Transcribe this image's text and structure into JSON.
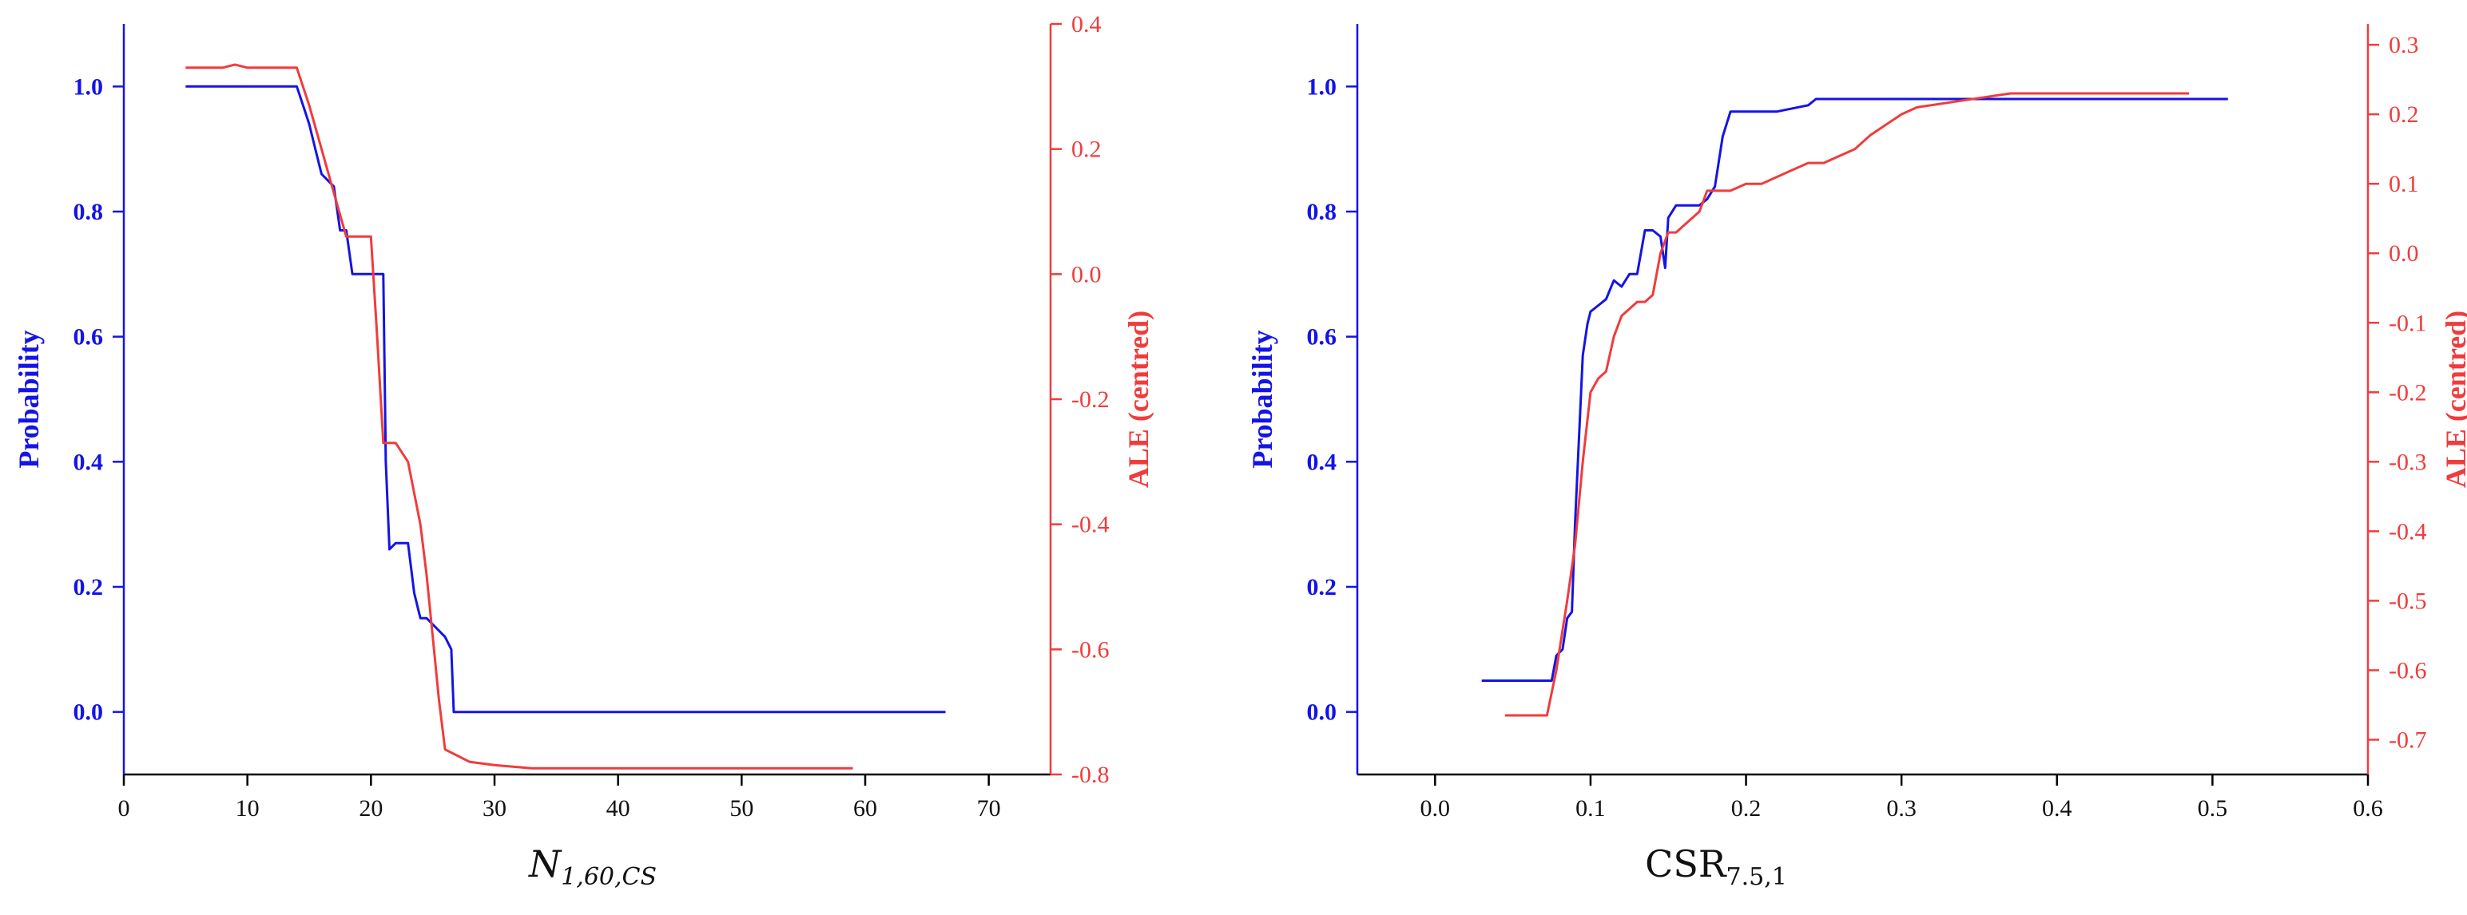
{
  "chart_data": [
    {
      "type": "line",
      "xlabel": {
        "main": "N",
        "sub": "1,60,CS"
      },
      "ylabel": "Probability",
      "y2label": "ALE (centred)",
      "xlim": [
        0,
        75
      ],
      "ylim": [
        -0.1,
        1.1
      ],
      "y2lim": [
        -0.8,
        0.4
      ],
      "xticks": [
        "0",
        "10",
        "20",
        "30",
        "40",
        "50",
        "60",
        "70"
      ],
      "yticks": [
        "0.0",
        "0.2",
        "0.4",
        "0.6",
        "0.8",
        "1.0"
      ],
      "y2ticks": [
        "-0.8",
        "-0.6",
        "-0.4",
        "-0.2",
        "0.0",
        "0.2",
        "0.4"
      ],
      "colors": {
        "probability": "#1414e6",
        "ale": "#f03c3c"
      },
      "series": [
        {
          "axis": "left",
          "x": [
            5,
            14,
            14.5,
            15,
            15.5,
            16,
            16.5,
            17,
            17.5,
            18,
            18.5,
            19,
            20,
            21,
            21.2,
            21.5,
            22,
            23,
            23.5,
            24,
            24.5,
            25.5,
            26,
            26.5,
            26.7,
            30,
            66.5
          ],
          "y": [
            1.0,
            1.0,
            0.97,
            0.94,
            0.9,
            0.86,
            0.85,
            0.84,
            0.77,
            0.77,
            0.7,
            0.7,
            0.7,
            0.7,
            0.4,
            0.26,
            0.27,
            0.27,
            0.19,
            0.15,
            0.15,
            0.13,
            0.12,
            0.1,
            0.0,
            0.0,
            0.0
          ]
        },
        {
          "axis": "right",
          "x": [
            5,
            8,
            9,
            10,
            12,
            14,
            15,
            16,
            17,
            18,
            19,
            20,
            20.5,
            21,
            21.5,
            22,
            23,
            24,
            24.5,
            25,
            25.5,
            26,
            27,
            28,
            30,
            33,
            40,
            59
          ],
          "y": [
            0.33,
            0.33,
            0.335,
            0.33,
            0.33,
            0.33,
            0.27,
            0.2,
            0.13,
            0.06,
            0.06,
            0.06,
            -0.1,
            -0.27,
            -0.27,
            -0.27,
            -0.3,
            -0.4,
            -0.48,
            -0.58,
            -0.68,
            -0.76,
            -0.77,
            -0.78,
            -0.785,
            -0.79,
            -0.79,
            -0.79
          ]
        }
      ]
    },
    {
      "type": "line",
      "xlabel": {
        "main": "CSR",
        "sub": "7.5,1"
      },
      "ylabel": "Probability",
      "y2label": "ALE (centred)",
      "xlim": [
        -0.05,
        0.6
      ],
      "ylim": [
        -0.1,
        1.1
      ],
      "y2lim": [
        -0.75,
        0.33
      ],
      "xticks": [
        "0.0",
        "0.1",
        "0.2",
        "0.3",
        "0.4",
        "0.5",
        "0.6"
      ],
      "yticks": [
        "0.0",
        "0.2",
        "0.4",
        "0.6",
        "0.8",
        "1.0"
      ],
      "y2ticks": [
        "-0.7",
        "-0.6",
        "-0.5",
        "-0.4",
        "-0.3",
        "-0.2",
        "-0.1",
        "0.0",
        "0.1",
        "0.2",
        "0.3"
      ],
      "colors": {
        "probability": "#1414e6",
        "ale": "#f03c3c"
      },
      "series": [
        {
          "axis": "left",
          "x": [
            0.03,
            0.075,
            0.078,
            0.082,
            0.085,
            0.088,
            0.09,
            0.095,
            0.098,
            0.1,
            0.105,
            0.11,
            0.115,
            0.12,
            0.125,
            0.13,
            0.135,
            0.14,
            0.145,
            0.148,
            0.15,
            0.155,
            0.16,
            0.17,
            0.175,
            0.18,
            0.185,
            0.19,
            0.2,
            0.22,
            0.24,
            0.245,
            0.26,
            0.3,
            0.4,
            0.51
          ],
          "y": [
            0.05,
            0.05,
            0.09,
            0.1,
            0.15,
            0.16,
            0.3,
            0.57,
            0.62,
            0.64,
            0.65,
            0.66,
            0.69,
            0.68,
            0.7,
            0.7,
            0.77,
            0.77,
            0.76,
            0.71,
            0.79,
            0.81,
            0.81,
            0.81,
            0.82,
            0.84,
            0.92,
            0.96,
            0.96,
            0.96,
            0.97,
            0.98,
            0.98,
            0.98,
            0.98,
            0.98
          ]
        },
        {
          "axis": "right",
          "x": [
            0.045,
            0.072,
            0.078,
            0.085,
            0.09,
            0.095,
            0.1,
            0.105,
            0.11,
            0.115,
            0.12,
            0.125,
            0.13,
            0.135,
            0.14,
            0.145,
            0.15,
            0.155,
            0.16,
            0.17,
            0.175,
            0.18,
            0.19,
            0.2,
            0.21,
            0.22,
            0.23,
            0.24,
            0.25,
            0.26,
            0.27,
            0.28,
            0.3,
            0.31,
            0.34,
            0.37,
            0.39,
            0.45,
            0.485
          ],
          "y": [
            -0.665,
            -0.665,
            -0.6,
            -0.5,
            -0.42,
            -0.3,
            -0.2,
            -0.18,
            -0.17,
            -0.12,
            -0.09,
            -0.08,
            -0.07,
            -0.07,
            -0.06,
            0.0,
            0.03,
            0.03,
            0.04,
            0.06,
            0.09,
            0.09,
            0.09,
            0.1,
            0.1,
            0.11,
            0.12,
            0.13,
            0.13,
            0.14,
            0.15,
            0.17,
            0.2,
            0.21,
            0.22,
            0.23,
            0.23,
            0.23,
            0.23
          ]
        }
      ]
    }
  ]
}
